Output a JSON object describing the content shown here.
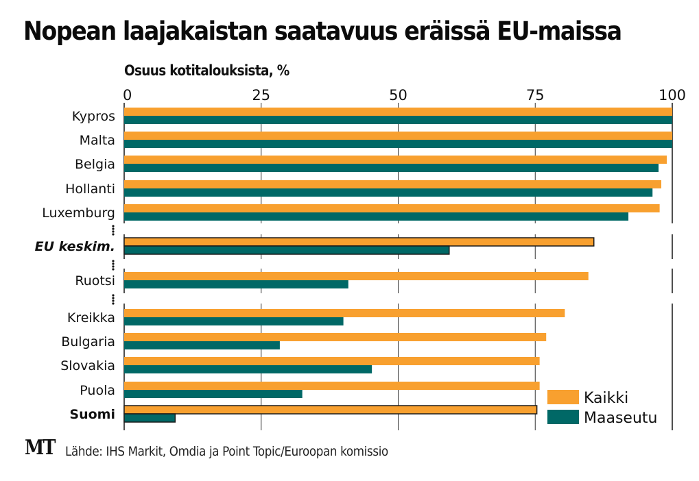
{
  "chart_data": {
    "type": "bar",
    "orientation": "horizontal",
    "title": "Nopean laajakaistan saatavuus eräissä EU-maissa",
    "xlabel": "Osuus kotitalouksista, %",
    "ylabel": "",
    "xlim": [
      0,
      100
    ],
    "xticks": [
      "0",
      "25",
      "50",
      "75",
      "100"
    ],
    "grid": true,
    "legend_position": "bottom-right",
    "categories": [
      "Kypros",
      "Malta",
      "Belgia",
      "Hollanti",
      "Luxemburg",
      "EU keskim.",
      "Ruotsi",
      "Kreikka",
      "Bulgaria",
      "Slovakia",
      "Puola",
      "Suomi"
    ],
    "category_groups": [
      [
        0,
        1,
        2,
        3,
        4
      ],
      [
        5
      ],
      [
        6
      ],
      [
        7,
        8,
        9,
        10,
        11
      ]
    ],
    "highlighted": {
      "EU keskim.": "italic-bold",
      "Suomi": "bold"
    },
    "series": [
      {
        "name": "Kaikki",
        "color": "#F8A02F",
        "values": [
          100,
          100,
          99,
          98,
          97.7,
          85.7,
          84.7,
          80.4,
          77,
          75.8,
          75.8,
          75.3
        ]
      },
      {
        "name": "Maaseutu",
        "color": "#006866",
        "values": [
          100,
          100,
          97.5,
          96.4,
          92,
          59.3,
          40.9,
          40,
          28.4,
          45.2,
          32.5,
          9.3
        ]
      }
    ],
    "source": "Lähde: IHS Markit, Omdia ja Point Topic/Euroopan komissio"
  },
  "branding": {
    "logo": "MT"
  }
}
